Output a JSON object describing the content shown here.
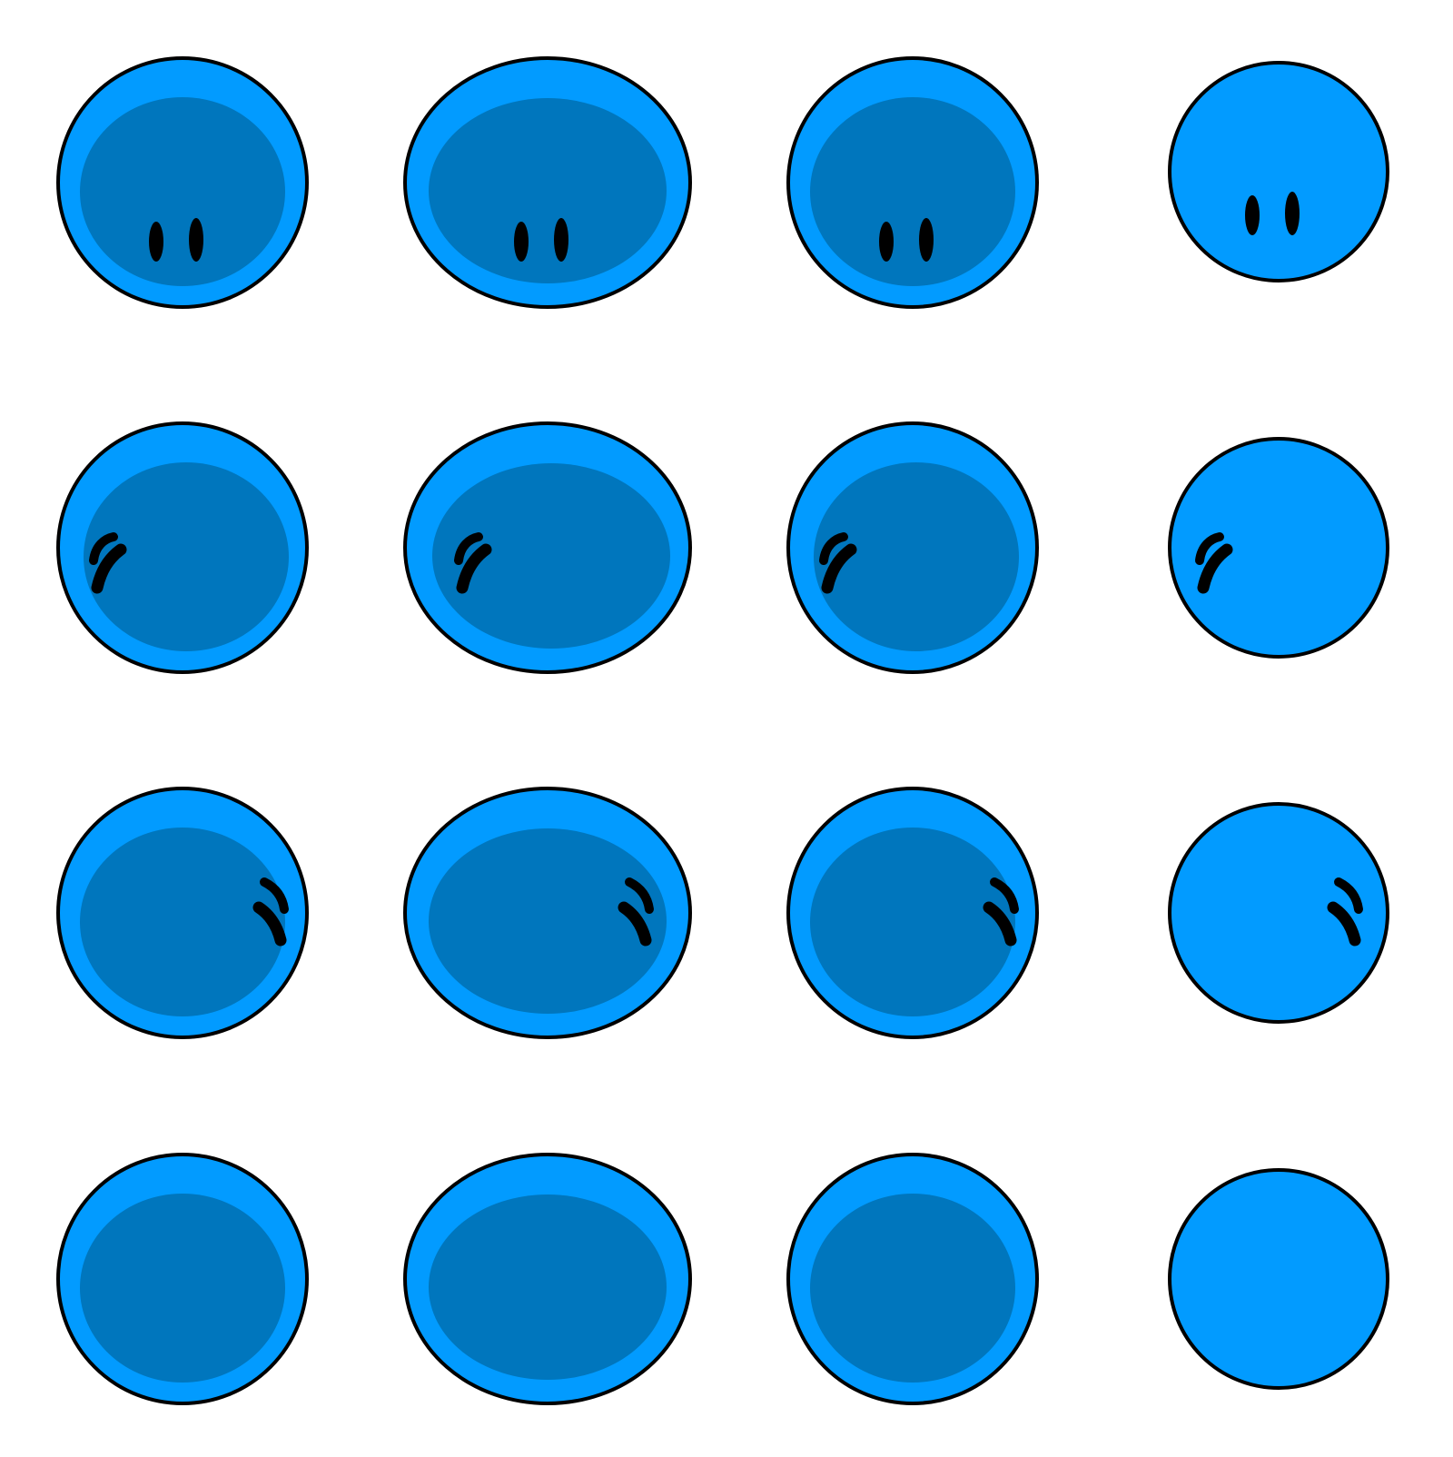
{
  "sprite_sheet": {
    "grid": {
      "rows": 4,
      "columns": 4
    },
    "colors": {
      "background": "#ffffff",
      "body": "#029bff",
      "inner": "#0076bd",
      "outline": "#000000",
      "eyes": "#000000"
    },
    "rows": [
      {
        "facing": "down"
      },
      {
        "facing": "left"
      },
      {
        "facing": "right"
      },
      {
        "facing": "up"
      }
    ],
    "columns": [
      {
        "variant": "round",
        "has_inner": true
      },
      {
        "variant": "wide",
        "has_inner": true
      },
      {
        "variant": "round",
        "has_inner": true
      },
      {
        "variant": "small",
        "has_inner": false
      }
    ]
  }
}
